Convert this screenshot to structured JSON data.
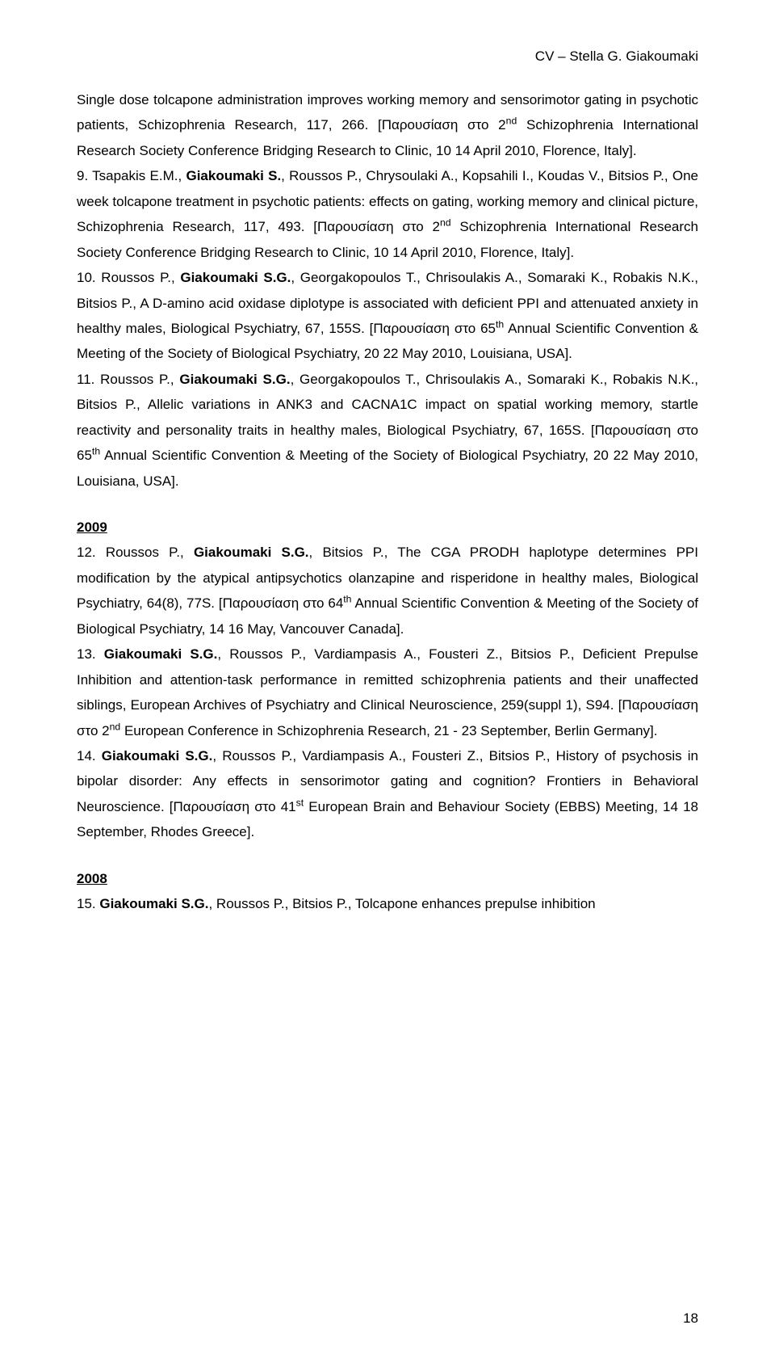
{
  "header": "CV – Stella G. Giakoumaki",
  "pageNumber": "18",
  "paragraphs": [
    {
      "html": "Single dose tolcapone administration improves working memory and sensorimotor gating in psychotic patients, Schizophrenia Research, 117, 266. [Παρουσίαση στο 2<sup>nd</sup> Schizophrenia International Research Society Conference Bridging Research to Clinic, 10 14 April 2010, Florence, Italy]."
    },
    {
      "html": "9. Tsapakis E.M., <span class=\"bold\">Giakoumaki S.</span>, Roussos P., Chrysoulaki A., Kopsahili I., Koudas V., Bitsios P., One week tolcapone treatment in psychotic patients: effects on gating, working memory and clinical picture, Schizophrenia Research, 117, 493. [Παρουσίαση στο 2<sup>nd</sup> Schizophrenia International Research Society Conference Bridging Research to Clinic, 10 14 April 2010, Florence, Italy]."
    },
    {
      "html": "10. Roussos P., <span class=\"bold\">Giakoumaki S.G.</span>, Georgakopoulos T., Chrisoulakis A., Somaraki K., Robakis N.K., Bitsios P., A D-amino acid oxidase diplotype is associated with deficient PPI and attenuated anxiety in healthy males, Biological Psychiatry, 67, 155S. [Παρουσίαση στο 65<sup>th</sup> Annual Scientific Convention & Meeting of the Society of Biological Psychiatry, 20 22 May 2010, Louisiana, USA]."
    },
    {
      "html": "11. Roussos P., <span class=\"bold\">Giakoumaki S.G.</span>, Georgakopoulos T., Chrisoulakis A., Somaraki K., Robakis N.K., Bitsios P., Allelic variations in ANK3 and CACNA1C impact on spatial working memory, startle reactivity and personality traits in healthy males, Biological Psychiatry, 67, 165S. [Παρουσίαση στο 65<sup>th</sup> Annual Scientific Convention & Meeting of the Society of Biological Psychiatry, 20 22 May 2010, Louisiana, USA]."
    }
  ],
  "year2009": "2009",
  "paragraphs2009": [
    {
      "html": "12. Roussos P., <span class=\"bold\">Giakoumaki S.G.</span>, Bitsios P., The CGA PRODH haplotype determines PPI modification by the atypical antipsychotics olanzapine and risperidone in healthy males, Biological Psychiatry, 64(8), 77S. [Παρουσίαση στο 64<sup>th</sup> Annual Scientific Convention & Meeting of the Society of Biological Psychiatry, 14 16 May, Vancouver Canada]."
    },
    {
      "html": "13. <span class=\"bold\">Giakoumaki S.G.</span>, Roussos P., Vardiampasis A., Fousteri Z., Bitsios P., Deficient Prepulse Inhibition and attention-task performance in remitted schizophrenia patients and their unaffected siblings, European Archives of Psychiatry and Clinical Neuroscience, 259(suppl 1), S94. [Παρουσίαση στο 2<sup>nd</sup> European Conference in Schizophrenia Research, 21 - 23 September, Berlin Germany]."
    },
    {
      "html": "14. <span class=\"bold\">Giakoumaki S.G.</span>, Roussos P., Vardiampasis A., Fousteri Z., Bitsios P., History of psychosis in bipolar disorder: Any effects in sensorimotor gating and cognition? Frontiers in Behavioral Neuroscience. [Παρουσίαση στο 41<sup>st</sup> European Brain and Behaviour Society (EBBS) Meeting, 14 18 September, Rhodes Greece]."
    }
  ],
  "year2008": "2008",
  "paragraphs2008": [
    {
      "html": "15. <span class=\"bold\">Giakoumaki S.G.</span>, Roussos P., Bitsios P., Tolcapone enhances prepulse inhibition"
    }
  ]
}
